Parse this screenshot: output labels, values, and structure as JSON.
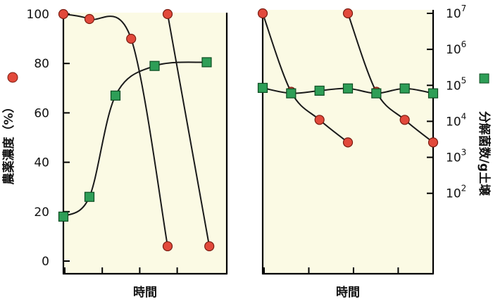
{
  "chart_data": [
    {
      "type": "line",
      "xlabel": "時間",
      "ylabel": "農薬濃度（%）",
      "ylim": [
        0,
        100
      ],
      "yticks": [
        "0",
        "20",
        "40",
        "60",
        "80",
        "100"
      ],
      "x_ticks_count": 4,
      "grid": false,
      "series": [
        {
          "marker": "circle",
          "color": "#e2493b",
          "segments": [
            {
              "x": [
                0,
                0.5,
                1.3,
                2.0
              ],
              "y": [
                100,
                98,
                90,
                6
              ]
            },
            {
              "x": [
                2.0,
                2.8
              ],
              "y": [
                100,
                6
              ]
            }
          ]
        },
        {
          "marker": "square",
          "color": "#2e9e57",
          "segments": [
            {
              "x": [
                0,
                0.5,
                1.0,
                1.75,
                2.75
              ],
              "y": [
                18,
                26,
                67,
                79,
                80.5
              ]
            }
          ]
        }
      ]
    },
    {
      "type": "line",
      "xlabel": "時間",
      "y2label": "分解菌数/g土壌",
      "yscale": "log",
      "ylim": [
        1,
        10000000
      ],
      "yticks": [
        {
          "base": "10",
          "exp": "2",
          "value": 100
        },
        {
          "base": "10",
          "exp": "3",
          "value": 1000
        },
        {
          "base": "10",
          "exp": "4",
          "value": 10000
        },
        {
          "base": "10",
          "exp": "5",
          "value": 100000
        },
        {
          "base": "10",
          "exp": "6",
          "value": 1000000
        },
        {
          "base": "10",
          "exp": "7",
          "value": 10000000
        }
      ],
      "x_ticks_count": 4,
      "grid": false,
      "series": [
        {
          "marker": "circle",
          "color": "#e2493b",
          "segments": [
            {
              "x": [
                0,
                0.5,
                1.0,
                1.5
              ],
              "y": [
                10000000,
                66000,
                11000,
                2600
              ]
            },
            {
              "x": [
                1.5,
                2.0,
                2.5,
                3.0
              ],
              "y": [
                10000000,
                66000,
                11000,
                2600
              ]
            }
          ]
        },
        {
          "marker": "square",
          "color": "#2e9e57",
          "segments": [
            {
              "x": [
                0,
                0.5,
                1.0,
                1.5,
                2.0,
                2.5,
                3.0
              ],
              "y": [
                85000,
                60000,
                71000,
                82000,
                60000,
                82000,
                60000
              ]
            }
          ]
        }
      ]
    }
  ]
}
